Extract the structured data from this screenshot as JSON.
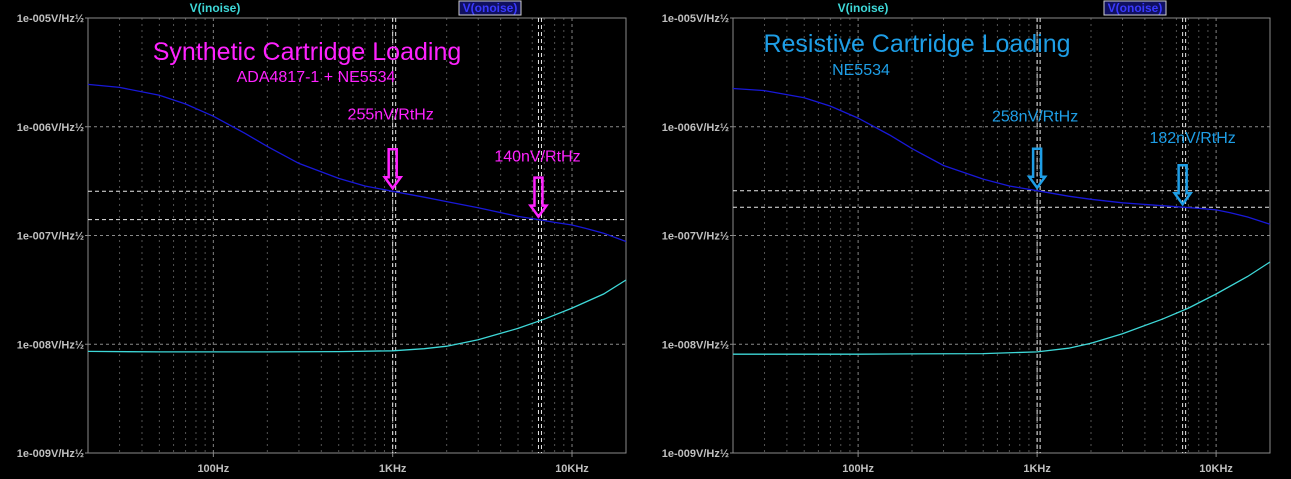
{
  "chart_data": [
    {
      "type": "line",
      "x_scale": "log",
      "y_scale": "log",
      "xlim": [
        20,
        20000
      ],
      "ylim": [
        1e-09,
        1e-05
      ],
      "grid": true,
      "y_ticks": [
        {
          "value": 1e-05,
          "label": "1e-005V/Hz½"
        },
        {
          "value": 1e-06,
          "label": "1e-006V/Hz½"
        },
        {
          "value": 1e-07,
          "label": "1e-007V/Hz½"
        },
        {
          "value": 1e-08,
          "label": "1e-008V/Hz½"
        },
        {
          "value": 1e-09,
          "label": "1e-009V/Hz½"
        }
      ],
      "x_ticks": [
        {
          "value": 100,
          "label": "100Hz"
        },
        {
          "value": 1000,
          "label": "1KHz"
        },
        {
          "value": 10000,
          "label": "10KHz"
        }
      ],
      "traces_header": [
        "V(inoise)",
        "V(onoise)"
      ],
      "annotation_title": "Synthetic Cartridge Loading",
      "annotation_subtitle": "ADA4817-1 + NE5534",
      "annotation_color": "#ff22ff",
      "series": [
        {
          "name": "V(onoise)",
          "color": "#1818d8",
          "x": [
            20,
            30,
            50,
            70,
            100,
            150,
            200,
            300,
            500,
            700,
            1000,
            1500,
            2000,
            3000,
            5000,
            6500,
            8000,
            10000,
            12000,
            15000,
            20000
          ],
          "y": [
            2.45e-06,
            2.3e-06,
            1.95e-06,
            1.62e-06,
            1.25e-06,
            8.7e-07,
            6.6e-07,
            4.6e-07,
            3.35e-07,
            2.85e-07,
            2.55e-07,
            2.25e-07,
            2.05e-07,
            1.8e-07,
            1.5e-07,
            1.4e-07,
            1.32e-07,
            1.25e-07,
            1.16e-07,
            1.05e-07,
            8.8e-08
          ]
        },
        {
          "name": "V(inoise)",
          "color": "#3ed8d8",
          "x": [
            20,
            50,
            100,
            200,
            500,
            1000,
            1500,
            2000,
            3000,
            5000,
            7000,
            10000,
            15000,
            20000
          ],
          "y": [
            8.6e-09,
            8.5e-09,
            8.5e-09,
            8.5e-09,
            8.55e-09,
            8.7e-09,
            9.1e-09,
            9.6e-09,
            1.1e-08,
            1.4e-08,
            1.7e-08,
            2.15e-08,
            2.9e-08,
            3.9e-08
          ]
        }
      ],
      "markers": [
        {
          "x": 1000,
          "y": 2.55e-07,
          "label": "255nV/RtHz"
        },
        {
          "x": 6500,
          "y": 1.4e-07,
          "label": "140nV/RtHz"
        }
      ]
    },
    {
      "type": "line",
      "x_scale": "log",
      "y_scale": "log",
      "xlim": [
        20,
        20000
      ],
      "ylim": [
        1e-09,
        1e-05
      ],
      "grid": true,
      "y_ticks": [
        {
          "value": 1e-05,
          "label": "1e-005V/Hz½"
        },
        {
          "value": 1e-06,
          "label": "1e-006V/Hz½"
        },
        {
          "value": 1e-07,
          "label": "1e-007V/Hz½"
        },
        {
          "value": 1e-08,
          "label": "1e-008V/Hz½"
        },
        {
          "value": 1e-09,
          "label": "1e-009V/Hz½"
        }
      ],
      "x_ticks": [
        {
          "value": 100,
          "label": "100Hz"
        },
        {
          "value": 1000,
          "label": "1KHz"
        },
        {
          "value": 10000,
          "label": "10KHz"
        }
      ],
      "traces_header": [
        "V(inoise)",
        "V(onoise)"
      ],
      "annotation_title": "Resistive Cartridge Loading",
      "annotation_subtitle": "NE5534",
      "annotation_color": "#1e9ee6",
      "series": [
        {
          "name": "V(onoise)",
          "color": "#1818d8",
          "x": [
            20,
            30,
            50,
            70,
            100,
            150,
            200,
            300,
            500,
            700,
            1000,
            1500,
            2000,
            3000,
            5000,
            6500,
            8000,
            10000,
            12000,
            15000,
            20000
          ],
          "y": [
            2.25e-06,
            2.15e-06,
            1.85e-06,
            1.55e-06,
            1.2e-06,
            8.4e-07,
            6.3e-07,
            4.4e-07,
            3.3e-07,
            2.85e-07,
            2.58e-07,
            2.3e-07,
            2.15e-07,
            2e-07,
            1.88e-07,
            1.82e-07,
            1.78e-07,
            1.72e-07,
            1.62e-07,
            1.48e-07,
            1.27e-07
          ]
        },
        {
          "name": "V(inoise)",
          "color": "#3ed8d8",
          "x": [
            20,
            50,
            100,
            200,
            500,
            1000,
            1500,
            2000,
            3000,
            5000,
            7000,
            10000,
            15000,
            20000
          ],
          "y": [
            8.1e-09,
            8.1e-09,
            8.1e-09,
            8.15e-09,
            8.2e-09,
            8.5e-09,
            9.2e-09,
            1.02e-08,
            1.25e-08,
            1.7e-08,
            2.15e-08,
            2.9e-08,
            4.2e-08,
            5.7e-08
          ]
        }
      ],
      "markers": [
        {
          "x": 1000,
          "y": 2.58e-07,
          "label": "258nV/RtHz"
        },
        {
          "x": 6500,
          "y": 1.82e-07,
          "label": "182nV/RtHz"
        }
      ]
    }
  ]
}
